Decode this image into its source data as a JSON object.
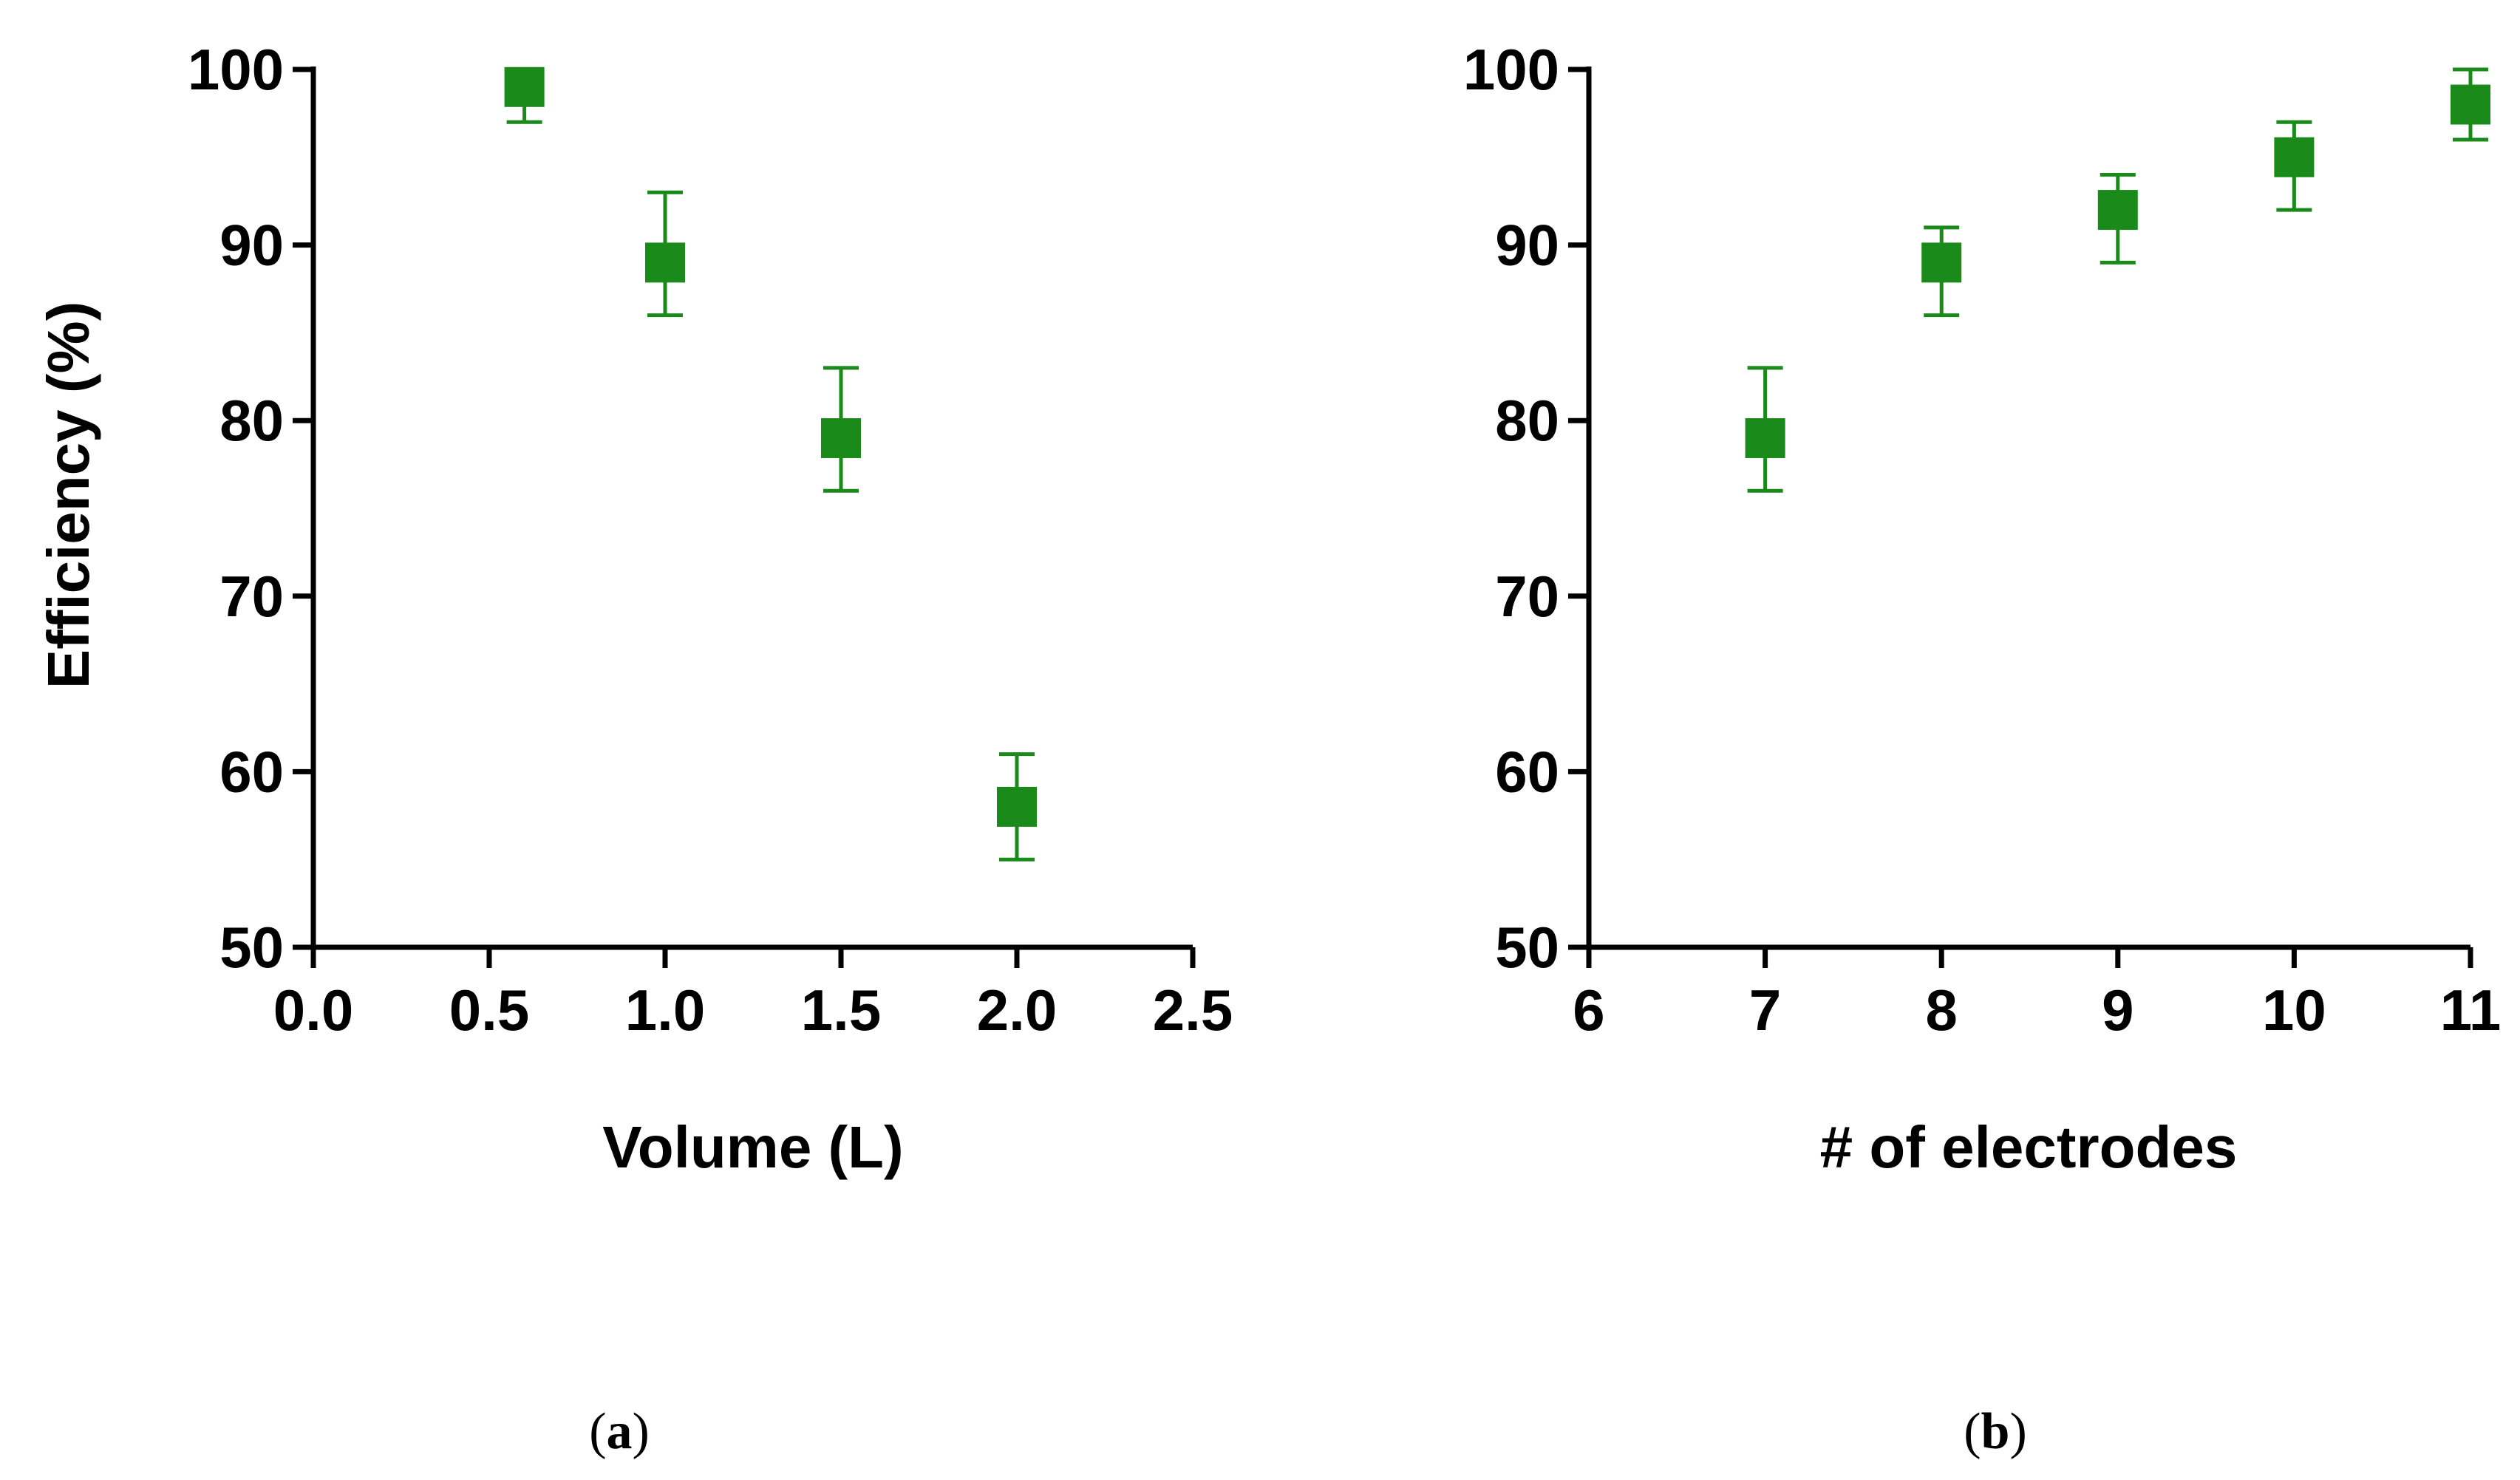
{
  "marker_color": "#1a8a1a",
  "chart_data": [
    {
      "type": "scatter",
      "panel_label_open": "(",
      "panel_label_letter": "a",
      "panel_label_close": ")",
      "title": "",
      "xlabel": "Volume (L)",
      "ylabel": "Efficiency  (%)",
      "xlim": [
        0,
        2.5
      ],
      "ylim": [
        50,
        100
      ],
      "xticks": [
        0.0,
        0.5,
        1.0,
        1.5,
        2.0,
        2.5
      ],
      "xtick_labels": [
        "0.0",
        "0.5",
        "1.0",
        "1.5",
        "2.0",
        "2.5"
      ],
      "yticks": [
        50,
        60,
        70,
        80,
        90,
        100
      ],
      "ytick_labels": [
        "50",
        "60",
        "70",
        "80",
        "90",
        "100"
      ],
      "grid": false,
      "series": [
        {
          "name": "Efficiency",
          "x": [
            0.6,
            1.0,
            1.5,
            2.0
          ],
          "y": [
            99,
            89,
            79,
            58
          ],
          "err_low": [
            97,
            86,
            76,
            55
          ],
          "err_high": [
            100,
            93,
            83,
            61
          ]
        }
      ]
    },
    {
      "type": "scatter",
      "panel_label_open": "(",
      "panel_label_letter": "b",
      "panel_label_close": ")",
      "title": "",
      "xlabel": "# of electrodes",
      "ylabel": "",
      "xlim": [
        6,
        11
      ],
      "ylim": [
        50,
        100
      ],
      "xticks": [
        6,
        7,
        8,
        9,
        10,
        11
      ],
      "xtick_labels": [
        "6",
        "7",
        "8",
        "9",
        "10",
        "11"
      ],
      "yticks": [
        50,
        60,
        70,
        80,
        90,
        100
      ],
      "ytick_labels": [
        "50",
        "60",
        "70",
        "80",
        "90",
        "100"
      ],
      "grid": false,
      "series": [
        {
          "name": "Efficiency",
          "x": [
            7,
            8,
            9,
            10,
            11
          ],
          "y": [
            79,
            89,
            92,
            95,
            98
          ],
          "err_low": [
            76,
            86,
            89,
            92,
            96
          ],
          "err_high": [
            83,
            91,
            94,
            97,
            100
          ]
        }
      ]
    }
  ]
}
